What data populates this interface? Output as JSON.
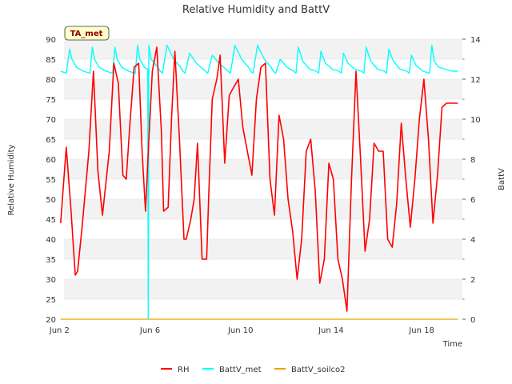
{
  "chart_data": {
    "type": "line",
    "title": "Relative Humidity and BattV",
    "badge": "TA_met",
    "xlabel": "Time",
    "ylabel": "Relative Humidity",
    "y2label": "BattV",
    "x_start": "2023-06-02",
    "xlim": [
      2.2,
      19.8
    ],
    "x_ticks": [
      2,
      6,
      10,
      14,
      18
    ],
    "x_tick_labels": [
      "Jun 2",
      "Jun 6",
      "Jun 10",
      "Jun 14",
      "Jun 18"
    ],
    "ylim": [
      20,
      90
    ],
    "y_ticks": [
      20,
      25,
      30,
      35,
      40,
      45,
      50,
      55,
      60,
      65,
      70,
      75,
      80,
      85,
      90
    ],
    "y2lim": [
      0,
      14
    ],
    "y2_ticks": [
      0,
      2,
      4,
      6,
      8,
      10,
      12,
      14
    ],
    "grid": true,
    "legend_position": "bottom-center",
    "colors": {
      "RH": "#ff0000",
      "BattV_met": "#00ffff",
      "BattV_soilco2": "#e6a700",
      "band": "#f2f2f2",
      "badge_bg": "#ffffcc"
    },
    "series": [
      {
        "name": "RH",
        "axis": "left",
        "x": [
          2.05,
          2.3,
          2.5,
          2.7,
          2.8,
          3.0,
          3.3,
          3.5,
          3.7,
          3.9,
          4.2,
          4.4,
          4.6,
          4.8,
          4.95,
          5.1,
          5.3,
          5.5,
          5.65,
          5.8,
          5.95,
          6.1,
          6.3,
          6.5,
          6.6,
          6.8,
          6.95,
          7.1,
          7.3,
          7.5,
          7.6,
          7.8,
          7.95,
          8.1,
          8.3,
          8.5,
          8.6,
          8.75,
          8.95,
          9.1,
          9.3,
          9.5,
          9.7,
          9.9,
          10.1,
          10.3,
          10.5,
          10.7,
          10.9,
          11.1,
          11.3,
          11.5,
          11.7,
          11.9,
          12.1,
          12.3,
          12.5,
          12.7,
          12.9,
          13.1,
          13.3,
          13.5,
          13.7,
          13.9,
          14.1,
          14.3,
          14.5,
          14.7,
          14.9,
          15.1,
          15.3,
          15.5,
          15.7,
          15.9,
          16.1,
          16.3,
          16.5,
          16.7,
          16.9,
          17.1,
          17.3,
          17.5,
          17.7,
          17.9,
          18.1,
          18.3,
          18.5,
          18.7,
          18.9,
          19.1,
          19.3,
          19.5,
          19.6
        ],
        "values": [
          44,
          63,
          48,
          31,
          32,
          43,
          62,
          82,
          57,
          46,
          62,
          84,
          79,
          56,
          55,
          68,
          83,
          84,
          62,
          47,
          65,
          82,
          88,
          67,
          47,
          48,
          70,
          87,
          65,
          40,
          40,
          45,
          50,
          64,
          35,
          35,
          52,
          75,
          80,
          86,
          59,
          76,
          78,
          80,
          68,
          62,
          56,
          75,
          83,
          84,
          55,
          46,
          71,
          65,
          50,
          42,
          30,
          40,
          62,
          65,
          52,
          29,
          35,
          59,
          55,
          35,
          30,
          22,
          55,
          82,
          60,
          37,
          45,
          64,
          62,
          62,
          40,
          38,
          49,
          69,
          55,
          43,
          55,
          70,
          80,
          65,
          44,
          56,
          73,
          74,
          74,
          74,
          74
        ]
      },
      {
        "name": "BattV_met",
        "axis": "right",
        "x": [
          2.05,
          2.3,
          2.45,
          2.55,
          2.75,
          3.05,
          3.35,
          3.45,
          3.55,
          3.75,
          4.05,
          4.35,
          4.45,
          4.55,
          4.75,
          5.05,
          5.35,
          5.45,
          5.55,
          5.75,
          5.9,
          5.92,
          5.95,
          6.05,
          6.35,
          6.45,
          6.55,
          6.75,
          7.05,
          7.35,
          7.45,
          7.55,
          7.75,
          8.05,
          8.35,
          8.45,
          8.55,
          8.75,
          9.05,
          9.35,
          9.45,
          9.55,
          9.75,
          10.05,
          10.35,
          10.45,
          10.55,
          10.75,
          11.05,
          11.35,
          11.45,
          11.55,
          11.75,
          12.05,
          12.35,
          12.45,
          12.55,
          12.75,
          13.05,
          13.35,
          13.45,
          13.55,
          13.75,
          14.05,
          14.35,
          14.45,
          14.55,
          14.75,
          15.05,
          15.35,
          15.45,
          15.55,
          15.75,
          16.05,
          16.35,
          16.45,
          16.55,
          16.75,
          17.05,
          17.35,
          17.45,
          17.55,
          17.75,
          18.05,
          18.35,
          18.45,
          18.55,
          18.75,
          19.05,
          19.35,
          19.5,
          19.6
        ],
        "values": [
          12.4,
          12.3,
          13.5,
          13.0,
          12.6,
          12.4,
          12.3,
          13.6,
          13.0,
          12.6,
          12.4,
          12.3,
          13.6,
          13.0,
          12.6,
          12.4,
          12.3,
          13.7,
          13.0,
          12.6,
          12.5,
          0.0,
          13.7,
          13.0,
          12.6,
          12.4,
          12.3,
          13.7,
          13.0,
          12.6,
          12.4,
          12.3,
          13.3,
          12.8,
          12.5,
          12.4,
          12.3,
          13.2,
          12.8,
          12.5,
          12.4,
          12.3,
          13.7,
          13.0,
          12.6,
          12.4,
          12.3,
          13.7,
          13.0,
          12.6,
          12.4,
          12.3,
          13.0,
          12.6,
          12.4,
          12.3,
          13.6,
          12.9,
          12.5,
          12.4,
          12.3,
          13.4,
          12.8,
          12.5,
          12.4,
          12.3,
          13.3,
          12.8,
          12.5,
          12.4,
          12.3,
          13.6,
          12.9,
          12.5,
          12.4,
          12.3,
          13.5,
          12.9,
          12.5,
          12.4,
          12.3,
          13.2,
          12.7,
          12.4,
          12.3,
          13.7,
          12.9,
          12.6,
          12.5,
          12.4,
          12.4,
          12.4
        ]
      },
      {
        "name": "BattV_soilco2",
        "axis": "right",
        "x": [
          2.05,
          19.6
        ],
        "values": [
          0.0,
          0.0
        ]
      }
    ]
  }
}
